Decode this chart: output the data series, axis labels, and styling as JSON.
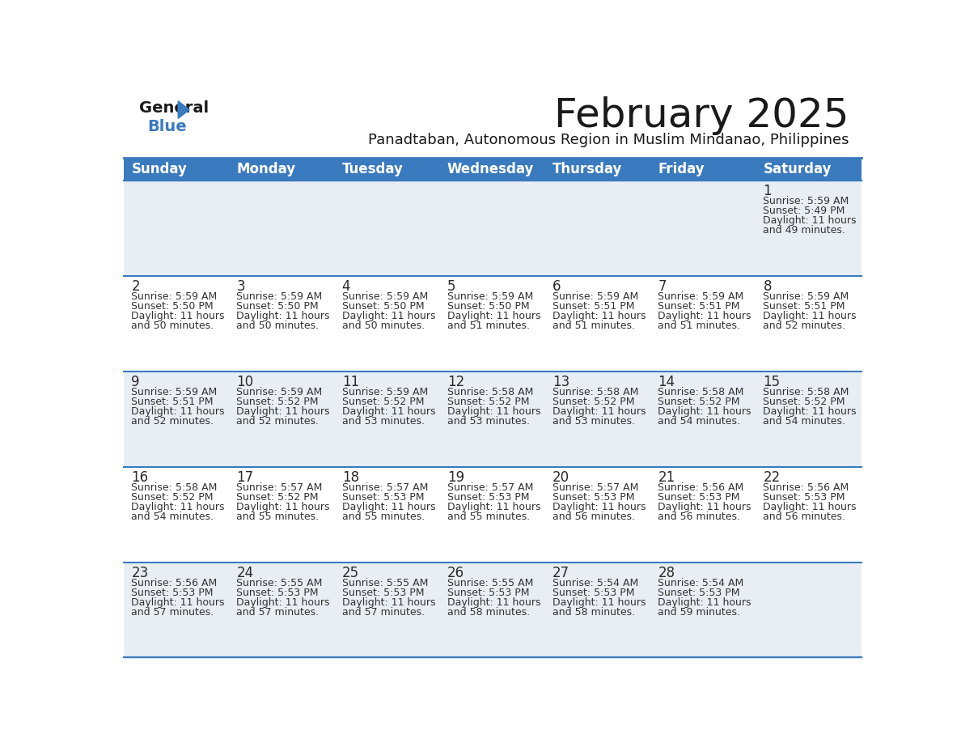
{
  "title": "February 2025",
  "subtitle": "Panadtaban, Autonomous Region in Muslim Mindanao, Philippines",
  "header_bg": "#3a7abf",
  "header_text": "#FFFFFF",
  "day_names": [
    "Sunday",
    "Monday",
    "Tuesday",
    "Wednesday",
    "Thursday",
    "Friday",
    "Saturday"
  ],
  "row_bg_odd": "#e8eef4",
  "row_bg_even": "#FFFFFF",
  "grid_line_color": "#3a7abf",
  "day_num_color": "#2a2a2a",
  "cell_text_color": "#333333",
  "title_color": "#1a1a1a",
  "subtitle_color": "#1a1a1a",
  "calendar_data": [
    [
      null,
      null,
      null,
      null,
      null,
      null,
      {
        "day": 1,
        "sunrise": "5:59 AM",
        "sunset": "5:49 PM",
        "daylight_line1": "Daylight: 11 hours",
        "daylight_line2": "and 49 minutes."
      }
    ],
    [
      {
        "day": 2,
        "sunrise": "5:59 AM",
        "sunset": "5:50 PM",
        "daylight_line1": "Daylight: 11 hours",
        "daylight_line2": "and 50 minutes."
      },
      {
        "day": 3,
        "sunrise": "5:59 AM",
        "sunset": "5:50 PM",
        "daylight_line1": "Daylight: 11 hours",
        "daylight_line2": "and 50 minutes."
      },
      {
        "day": 4,
        "sunrise": "5:59 AM",
        "sunset": "5:50 PM",
        "daylight_line1": "Daylight: 11 hours",
        "daylight_line2": "and 50 minutes."
      },
      {
        "day": 5,
        "sunrise": "5:59 AM",
        "sunset": "5:50 PM",
        "daylight_line1": "Daylight: 11 hours",
        "daylight_line2": "and 51 minutes."
      },
      {
        "day": 6,
        "sunrise": "5:59 AM",
        "sunset": "5:51 PM",
        "daylight_line1": "Daylight: 11 hours",
        "daylight_line2": "and 51 minutes."
      },
      {
        "day": 7,
        "sunrise": "5:59 AM",
        "sunset": "5:51 PM",
        "daylight_line1": "Daylight: 11 hours",
        "daylight_line2": "and 51 minutes."
      },
      {
        "day": 8,
        "sunrise": "5:59 AM",
        "sunset": "5:51 PM",
        "daylight_line1": "Daylight: 11 hours",
        "daylight_line2": "and 52 minutes."
      }
    ],
    [
      {
        "day": 9,
        "sunrise": "5:59 AM",
        "sunset": "5:51 PM",
        "daylight_line1": "Daylight: 11 hours",
        "daylight_line2": "and 52 minutes."
      },
      {
        "day": 10,
        "sunrise": "5:59 AM",
        "sunset": "5:52 PM",
        "daylight_line1": "Daylight: 11 hours",
        "daylight_line2": "and 52 minutes."
      },
      {
        "day": 11,
        "sunrise": "5:59 AM",
        "sunset": "5:52 PM",
        "daylight_line1": "Daylight: 11 hours",
        "daylight_line2": "and 53 minutes."
      },
      {
        "day": 12,
        "sunrise": "5:58 AM",
        "sunset": "5:52 PM",
        "daylight_line1": "Daylight: 11 hours",
        "daylight_line2": "and 53 minutes."
      },
      {
        "day": 13,
        "sunrise": "5:58 AM",
        "sunset": "5:52 PM",
        "daylight_line1": "Daylight: 11 hours",
        "daylight_line2": "and 53 minutes."
      },
      {
        "day": 14,
        "sunrise": "5:58 AM",
        "sunset": "5:52 PM",
        "daylight_line1": "Daylight: 11 hours",
        "daylight_line2": "and 54 minutes."
      },
      {
        "day": 15,
        "sunrise": "5:58 AM",
        "sunset": "5:52 PM",
        "daylight_line1": "Daylight: 11 hours",
        "daylight_line2": "and 54 minutes."
      }
    ],
    [
      {
        "day": 16,
        "sunrise": "5:58 AM",
        "sunset": "5:52 PM",
        "daylight_line1": "Daylight: 11 hours",
        "daylight_line2": "and 54 minutes."
      },
      {
        "day": 17,
        "sunrise": "5:57 AM",
        "sunset": "5:52 PM",
        "daylight_line1": "Daylight: 11 hours",
        "daylight_line2": "and 55 minutes."
      },
      {
        "day": 18,
        "sunrise": "5:57 AM",
        "sunset": "5:53 PM",
        "daylight_line1": "Daylight: 11 hours",
        "daylight_line2": "and 55 minutes."
      },
      {
        "day": 19,
        "sunrise": "5:57 AM",
        "sunset": "5:53 PM",
        "daylight_line1": "Daylight: 11 hours",
        "daylight_line2": "and 55 minutes."
      },
      {
        "day": 20,
        "sunrise": "5:57 AM",
        "sunset": "5:53 PM",
        "daylight_line1": "Daylight: 11 hours",
        "daylight_line2": "and 56 minutes."
      },
      {
        "day": 21,
        "sunrise": "5:56 AM",
        "sunset": "5:53 PM",
        "daylight_line1": "Daylight: 11 hours",
        "daylight_line2": "and 56 minutes."
      },
      {
        "day": 22,
        "sunrise": "5:56 AM",
        "sunset": "5:53 PM",
        "daylight_line1": "Daylight: 11 hours",
        "daylight_line2": "and 56 minutes."
      }
    ],
    [
      {
        "day": 23,
        "sunrise": "5:56 AM",
        "sunset": "5:53 PM",
        "daylight_line1": "Daylight: 11 hours",
        "daylight_line2": "and 57 minutes."
      },
      {
        "day": 24,
        "sunrise": "5:55 AM",
        "sunset": "5:53 PM",
        "daylight_line1": "Daylight: 11 hours",
        "daylight_line2": "and 57 minutes."
      },
      {
        "day": 25,
        "sunrise": "5:55 AM",
        "sunset": "5:53 PM",
        "daylight_line1": "Daylight: 11 hours",
        "daylight_line2": "and 57 minutes."
      },
      {
        "day": 26,
        "sunrise": "5:55 AM",
        "sunset": "5:53 PM",
        "daylight_line1": "Daylight: 11 hours",
        "daylight_line2": "and 58 minutes."
      },
      {
        "day": 27,
        "sunrise": "5:54 AM",
        "sunset": "5:53 PM",
        "daylight_line1": "Daylight: 11 hours",
        "daylight_line2": "and 58 minutes."
      },
      {
        "day": 28,
        "sunrise": "5:54 AM",
        "sunset": "5:53 PM",
        "daylight_line1": "Daylight: 11 hours",
        "daylight_line2": "and 59 minutes."
      },
      null
    ]
  ]
}
